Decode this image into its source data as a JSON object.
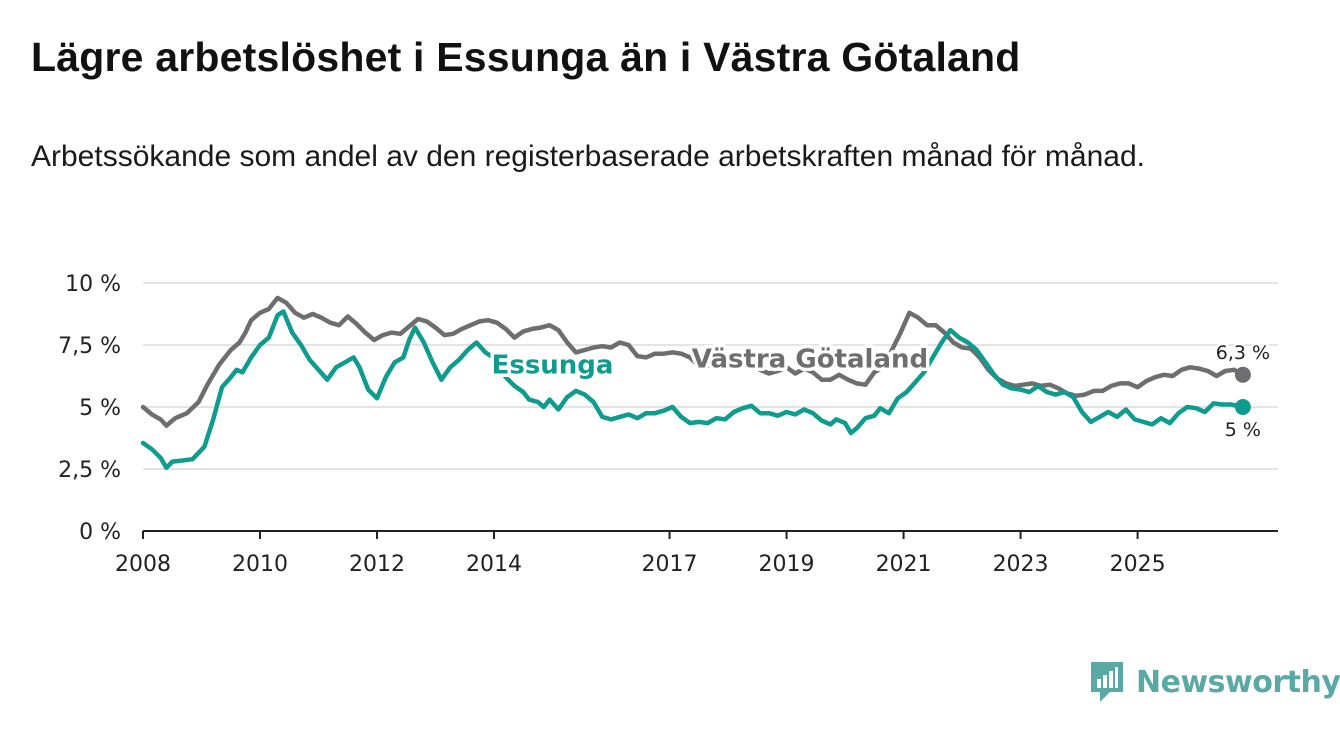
{
  "header": {
    "title": "Lägre arbetslöshet i Essunga än i Västra Götaland",
    "subtitle": "Arbetssökande som andel av den registerbaserade arbetskraften månad för månad."
  },
  "brand": {
    "name": "Newsworthy",
    "color": "#5aa9a5"
  },
  "chart_data": {
    "type": "line",
    "title": "Lägre arbetslöshet i Essunga än i Västra Götaland",
    "subtitle": "Arbetssökande som andel av den registerbaserade arbetskraften månad för månad.",
    "xlabel": "",
    "ylabel": "",
    "xlim": [
      2008.0,
      2027.4
    ],
    "ylim": [
      0,
      10
    ],
    "grid": true,
    "x_ticks": [
      2008,
      2010,
      2012,
      2014,
      2017,
      2019,
      2021,
      2023,
      2025
    ],
    "y_ticks": [
      {
        "value": 0,
        "label": "0 %"
      },
      {
        "value": 2.5,
        "label": "2,5 %"
      },
      {
        "value": 5,
        "label": "5 %"
      },
      {
        "value": 7.5,
        "label": "7,5 %"
      },
      {
        "value": 10,
        "label": "10 %"
      }
    ],
    "series": [
      {
        "name": "Västra Götaland",
        "color": "#6e6d70",
        "label_at": [
          2019.4,
          6.6
        ],
        "end_label": "6,3 %",
        "points": [
          [
            2008.0,
            5.0
          ],
          [
            2008.15,
            4.7
          ],
          [
            2008.3,
            4.5
          ],
          [
            2008.4,
            4.25
          ],
          [
            2008.55,
            4.55
          ],
          [
            2008.75,
            4.75
          ],
          [
            2008.95,
            5.2
          ],
          [
            2009.1,
            5.9
          ],
          [
            2009.3,
            6.7
          ],
          [
            2009.5,
            7.3
          ],
          [
            2009.65,
            7.6
          ],
          [
            2009.75,
            8.0
          ],
          [
            2009.85,
            8.5
          ],
          [
            2010.0,
            8.8
          ],
          [
            2010.15,
            8.95
          ],
          [
            2010.3,
            9.4
          ],
          [
            2010.45,
            9.2
          ],
          [
            2010.6,
            8.8
          ],
          [
            2010.75,
            8.6
          ],
          [
            2010.9,
            8.75
          ],
          [
            2011.05,
            8.6
          ],
          [
            2011.2,
            8.4
          ],
          [
            2011.35,
            8.3
          ],
          [
            2011.5,
            8.65
          ],
          [
            2011.65,
            8.35
          ],
          [
            2011.8,
            8.0
          ],
          [
            2011.95,
            7.7
          ],
          [
            2012.1,
            7.9
          ],
          [
            2012.25,
            8.0
          ],
          [
            2012.4,
            7.95
          ],
          [
            2012.55,
            8.25
          ],
          [
            2012.7,
            8.55
          ],
          [
            2012.85,
            8.45
          ],
          [
            2013.0,
            8.2
          ],
          [
            2013.15,
            7.9
          ],
          [
            2013.3,
            7.95
          ],
          [
            2013.45,
            8.15
          ],
          [
            2013.6,
            8.3
          ],
          [
            2013.75,
            8.45
          ],
          [
            2013.9,
            8.5
          ],
          [
            2014.05,
            8.4
          ],
          [
            2014.2,
            8.15
          ],
          [
            2014.35,
            7.8
          ],
          [
            2014.5,
            8.05
          ],
          [
            2014.65,
            8.15
          ],
          [
            2014.8,
            8.2
          ],
          [
            2014.95,
            8.3
          ],
          [
            2015.1,
            8.1
          ],
          [
            2015.25,
            7.6
          ],
          [
            2015.4,
            7.2
          ],
          [
            2015.55,
            7.3
          ],
          [
            2015.7,
            7.4
          ],
          [
            2015.85,
            7.45
          ],
          [
            2016.0,
            7.4
          ],
          [
            2016.15,
            7.6
          ],
          [
            2016.3,
            7.5
          ],
          [
            2016.45,
            7.05
          ],
          [
            2016.6,
            7.0
          ],
          [
            2016.75,
            7.15
          ],
          [
            2016.9,
            7.15
          ],
          [
            2017.05,
            7.2
          ],
          [
            2017.2,
            7.15
          ],
          [
            2017.35,
            7.0
          ],
          [
            2017.5,
            6.65
          ],
          [
            2017.65,
            6.65
          ],
          [
            2017.8,
            6.8
          ],
          [
            2017.95,
            6.9
          ],
          [
            2018.1,
            6.85
          ],
          [
            2018.25,
            6.85
          ],
          [
            2018.4,
            6.7
          ],
          [
            2018.55,
            6.5
          ],
          [
            2018.7,
            6.35
          ],
          [
            2018.85,
            6.45
          ],
          [
            2019.0,
            6.6
          ],
          [
            2019.15,
            6.35
          ],
          [
            2019.3,
            6.55
          ],
          [
            2019.45,
            6.4
          ],
          [
            2019.6,
            6.1
          ],
          [
            2019.75,
            6.1
          ],
          [
            2019.9,
            6.3
          ],
          [
            2020.05,
            6.1
          ],
          [
            2020.2,
            5.95
          ],
          [
            2020.35,
            5.9
          ],
          [
            2020.5,
            6.4
          ],
          [
            2020.65,
            6.6
          ],
          [
            2020.8,
            7.3
          ],
          [
            2020.95,
            8.0
          ],
          [
            2021.1,
            8.8
          ],
          [
            2021.25,
            8.6
          ],
          [
            2021.4,
            8.3
          ],
          [
            2021.55,
            8.3
          ],
          [
            2021.7,
            8.0
          ],
          [
            2021.85,
            7.6
          ],
          [
            2022.0,
            7.4
          ],
          [
            2022.15,
            7.35
          ],
          [
            2022.3,
            7.0
          ],
          [
            2022.45,
            6.5
          ],
          [
            2022.6,
            6.15
          ],
          [
            2022.75,
            5.95
          ],
          [
            2022.9,
            5.85
          ],
          [
            2023.05,
            5.9
          ],
          [
            2023.2,
            5.95
          ],
          [
            2023.35,
            5.85
          ],
          [
            2023.5,
            5.9
          ],
          [
            2023.65,
            5.75
          ],
          [
            2023.8,
            5.55
          ],
          [
            2023.95,
            5.45
          ],
          [
            2024.1,
            5.5
          ],
          [
            2024.25,
            5.65
          ],
          [
            2024.4,
            5.65
          ],
          [
            2024.55,
            5.85
          ],
          [
            2024.7,
            5.95
          ],
          [
            2024.85,
            5.95
          ],
          [
            2025.0,
            5.8
          ],
          [
            2025.15,
            6.05
          ],
          [
            2025.3,
            6.2
          ],
          [
            2025.45,
            6.3
          ],
          [
            2025.6,
            6.25
          ],
          [
            2025.75,
            6.5
          ],
          [
            2025.9,
            6.6
          ],
          [
            2026.05,
            6.55
          ],
          [
            2026.2,
            6.45
          ],
          [
            2026.35,
            6.25
          ],
          [
            2026.5,
            6.45
          ],
          [
            2026.65,
            6.5
          ],
          [
            2026.8,
            6.3
          ]
        ]
      },
      {
        "name": "Essunga",
        "color": "#0f9b8e",
        "label_at": [
          2015.0,
          6.35
        ],
        "end_label": "5 %",
        "points": [
          [
            2008.0,
            3.55
          ],
          [
            2008.15,
            3.3
          ],
          [
            2008.3,
            2.95
          ],
          [
            2008.4,
            2.55
          ],
          [
            2008.5,
            2.8
          ],
          [
            2008.7,
            2.85
          ],
          [
            2008.85,
            2.9
          ],
          [
            2009.05,
            3.4
          ],
          [
            2009.2,
            4.5
          ],
          [
            2009.35,
            5.8
          ],
          [
            2009.5,
            6.2
          ],
          [
            2009.6,
            6.5
          ],
          [
            2009.7,
            6.4
          ],
          [
            2009.85,
            7.0
          ],
          [
            2010.0,
            7.5
          ],
          [
            2010.15,
            7.8
          ],
          [
            2010.3,
            8.7
          ],
          [
            2010.4,
            8.85
          ],
          [
            2010.55,
            8.0
          ],
          [
            2010.7,
            7.5
          ],
          [
            2010.85,
            6.9
          ],
          [
            2011.0,
            6.5
          ],
          [
            2011.15,
            6.1
          ],
          [
            2011.3,
            6.6
          ],
          [
            2011.45,
            6.8
          ],
          [
            2011.6,
            7.0
          ],
          [
            2011.7,
            6.6
          ],
          [
            2011.85,
            5.7
          ],
          [
            2012.0,
            5.35
          ],
          [
            2012.15,
            6.2
          ],
          [
            2012.3,
            6.8
          ],
          [
            2012.45,
            7.0
          ],
          [
            2012.55,
            7.7
          ],
          [
            2012.65,
            8.2
          ],
          [
            2012.8,
            7.6
          ],
          [
            2012.95,
            6.8
          ],
          [
            2013.1,
            6.1
          ],
          [
            2013.25,
            6.6
          ],
          [
            2013.4,
            6.9
          ],
          [
            2013.55,
            7.3
          ],
          [
            2013.7,
            7.6
          ],
          [
            2013.85,
            7.2
          ],
          [
            2014.05,
            6.9
          ],
          [
            2014.2,
            6.2
          ],
          [
            2014.35,
            5.85
          ],
          [
            2014.5,
            5.6
          ],
          [
            2014.6,
            5.3
          ],
          [
            2014.75,
            5.2
          ],
          [
            2014.85,
            5.0
          ],
          [
            2014.95,
            5.3
          ],
          [
            2015.1,
            4.9
          ],
          [
            2015.25,
            5.4
          ],
          [
            2015.4,
            5.65
          ],
          [
            2015.55,
            5.5
          ],
          [
            2015.7,
            5.2
          ],
          [
            2015.85,
            4.6
          ],
          [
            2016.0,
            4.5
          ],
          [
            2016.15,
            4.6
          ],
          [
            2016.3,
            4.7
          ],
          [
            2016.45,
            4.55
          ],
          [
            2016.6,
            4.75
          ],
          [
            2016.75,
            4.75
          ],
          [
            2016.9,
            4.85
          ],
          [
            2017.05,
            5.0
          ],
          [
            2017.2,
            4.6
          ],
          [
            2017.35,
            4.35
          ],
          [
            2017.5,
            4.4
          ],
          [
            2017.65,
            4.35
          ],
          [
            2017.8,
            4.55
          ],
          [
            2017.95,
            4.5
          ],
          [
            2018.1,
            4.8
          ],
          [
            2018.25,
            4.95
          ],
          [
            2018.4,
            5.05
          ],
          [
            2018.55,
            4.75
          ],
          [
            2018.7,
            4.75
          ],
          [
            2018.85,
            4.65
          ],
          [
            2019.0,
            4.8
          ],
          [
            2019.15,
            4.7
          ],
          [
            2019.3,
            4.9
          ],
          [
            2019.45,
            4.75
          ],
          [
            2019.6,
            4.45
          ],
          [
            2019.75,
            4.3
          ],
          [
            2019.85,
            4.5
          ],
          [
            2020.0,
            4.35
          ],
          [
            2020.1,
            3.95
          ],
          [
            2020.2,
            4.15
          ],
          [
            2020.35,
            4.55
          ],
          [
            2020.5,
            4.65
          ],
          [
            2020.6,
            4.95
          ],
          [
            2020.75,
            4.75
          ],
          [
            2020.9,
            5.35
          ],
          [
            2021.05,
            5.6
          ],
          [
            2021.2,
            6.0
          ],
          [
            2021.35,
            6.4
          ],
          [
            2021.5,
            7.0
          ],
          [
            2021.65,
            7.6
          ],
          [
            2021.8,
            8.1
          ],
          [
            2021.95,
            7.8
          ],
          [
            2022.1,
            7.6
          ],
          [
            2022.25,
            7.3
          ],
          [
            2022.4,
            6.8
          ],
          [
            2022.55,
            6.3
          ],
          [
            2022.7,
            5.9
          ],
          [
            2022.85,
            5.75
          ],
          [
            2023.0,
            5.7
          ],
          [
            2023.15,
            5.6
          ],
          [
            2023.3,
            5.85
          ],
          [
            2023.45,
            5.6
          ],
          [
            2023.6,
            5.5
          ],
          [
            2023.75,
            5.6
          ],
          [
            2023.9,
            5.4
          ],
          [
            2024.05,
            4.8
          ],
          [
            2024.2,
            4.4
          ],
          [
            2024.35,
            4.6
          ],
          [
            2024.5,
            4.8
          ],
          [
            2024.65,
            4.6
          ],
          [
            2024.8,
            4.9
          ],
          [
            2024.95,
            4.5
          ],
          [
            2025.1,
            4.4
          ],
          [
            2025.25,
            4.3
          ],
          [
            2025.4,
            4.55
          ],
          [
            2025.55,
            4.35
          ],
          [
            2025.7,
            4.75
          ],
          [
            2025.85,
            5.0
          ],
          [
            2026.0,
            4.95
          ],
          [
            2026.15,
            4.8
          ],
          [
            2026.3,
            5.15
          ],
          [
            2026.45,
            5.1
          ],
          [
            2026.6,
            5.1
          ],
          [
            2026.8,
            5.0
          ]
        ]
      }
    ]
  }
}
